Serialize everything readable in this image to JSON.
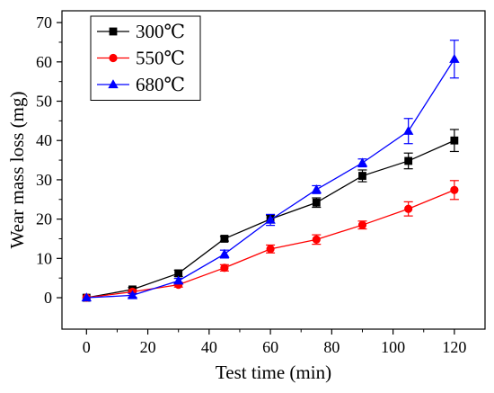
{
  "chart_data": {
    "type": "line",
    "title": "",
    "xlabel": "Test time (min)",
    "ylabel": "Wear mass loss (mg)",
    "xlim": [
      -8,
      130
    ],
    "ylim": [
      -8,
      73
    ],
    "xticks": [
      0,
      20,
      40,
      60,
      80,
      100,
      120
    ],
    "yticks": [
      0,
      10,
      20,
      30,
      40,
      50,
      60,
      70
    ],
    "grid": false,
    "legend_position": "top-left",
    "x": [
      0,
      15,
      30,
      45,
      60,
      75,
      90,
      105,
      120
    ],
    "series": [
      {
        "name": "300℃",
        "color": "#000000",
        "marker": "square",
        "values": [
          0,
          2.1,
          6.2,
          15.0,
          20.0,
          24.2,
          31.0,
          34.8,
          40.0
        ],
        "errors": [
          0.3,
          0.5,
          0.8,
          0.6,
          1.0,
          1.2,
          1.5,
          2.0,
          2.8
        ]
      },
      {
        "name": "550℃",
        "color": "#ff0000",
        "marker": "circle",
        "values": [
          0,
          1.5,
          3.3,
          7.6,
          12.4,
          14.8,
          18.5,
          22.6,
          27.4
        ],
        "errors": [
          0.3,
          0.5,
          0.6,
          0.8,
          1.0,
          1.2,
          1.0,
          1.8,
          2.4
        ]
      },
      {
        "name": "680℃",
        "color": "#0000ff",
        "marker": "triangle",
        "values": [
          0,
          0.6,
          4.3,
          11.1,
          19.8,
          27.5,
          34.3,
          42.4,
          60.7
        ],
        "errors": [
          0.3,
          0.5,
          0.6,
          1.0,
          1.4,
          1.0,
          1.0,
          3.2,
          4.8
        ]
      }
    ]
  }
}
